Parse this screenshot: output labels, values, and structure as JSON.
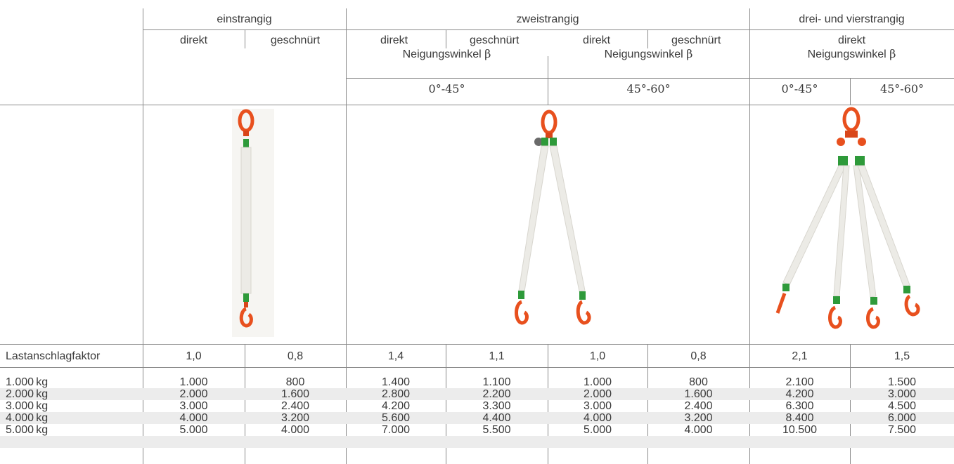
{
  "header": {
    "group1": "einstrangig",
    "group2": "zweistrangig",
    "group3": "drei- und vierstrangig",
    "direkt": "direkt",
    "geschnuert": "geschnürt",
    "neigung_prefix": "Neigungswinkel",
    "beta": "β",
    "range_0_45": "0°-45°",
    "range_45_60": "45°-60°"
  },
  "images": {
    "single": "single-leg-sling-image",
    "double": "two-leg-sling-image",
    "quad": "four-leg-sling-image"
  },
  "factor_row": {
    "label": "Lastanschlagfaktor",
    "values": [
      "1,0",
      "0,8",
      "1,4",
      "1,1",
      "1,0",
      "0,8",
      "2,1",
      "1,5"
    ]
  },
  "rows": [
    {
      "label": "1.000 kg",
      "values": [
        "1.000",
        "800",
        "1.400",
        "1.100",
        "1.000",
        "800",
        "2.100",
        "1.500"
      ]
    },
    {
      "label": "2.000 kg",
      "values": [
        "2.000",
        "1.600",
        "2.800",
        "2.200",
        "2.000",
        "1.600",
        "4.200",
        "3.000"
      ]
    },
    {
      "label": "3.000 kg",
      "values": [
        "3.000",
        "2.400",
        "4.200",
        "3.300",
        "3.000",
        "2.400",
        "6.300",
        "4.500"
      ]
    },
    {
      "label": "4.000 kg",
      "values": [
        "4.000",
        "3.200",
        "5.600",
        "4.400",
        "4.000",
        "3.200",
        "8.400",
        "6.000"
      ]
    },
    {
      "label": "5.000 kg",
      "values": [
        "5.000",
        "4.000",
        "7.000",
        "5.500",
        "5.000",
        "4.000",
        "10.500",
        "7.500"
      ]
    }
  ],
  "colors": {
    "hook_orange": "#e8501e",
    "sling_white": "#ecebe6",
    "tag_green": "#2e9a3a",
    "stripe": "#ececec",
    "line": "#8a8a8a"
  }
}
